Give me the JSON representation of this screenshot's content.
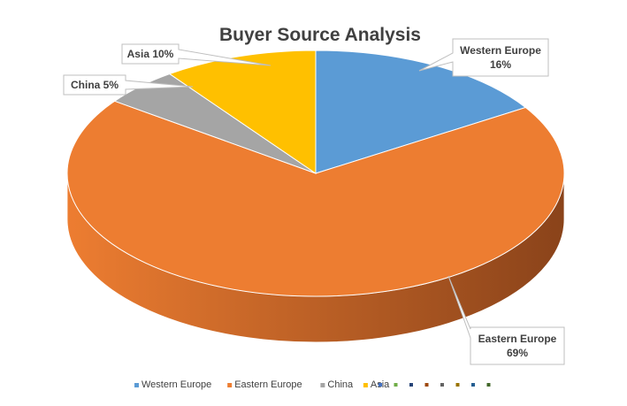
{
  "chart_data": {
    "type": "pie",
    "title": "Buyer Source Analysis",
    "categories": [
      "Western Europe",
      "Eastern Europe",
      "China",
      "Asia"
    ],
    "values": [
      16,
      69,
      5,
      10
    ],
    "unit": "%",
    "colors": [
      "#5b9bd5",
      "#ed7d31",
      "#a5a5a5",
      "#ffc000"
    ],
    "side_colors": [
      "#2e5f8c",
      "#8a431a",
      "#6a6a6a",
      "#a07800"
    ],
    "data_labels": [
      {
        "series": "Western Europe",
        "lines": [
          "Western Europe",
          "16%"
        ]
      },
      {
        "series": "Eastern Europe",
        "lines": [
          "Eastern Europe",
          "69%"
        ]
      },
      {
        "series": "China",
        "lines": [
          "China 5%"
        ]
      },
      {
        "series": "Asia",
        "lines": [
          "Asia 10%"
        ]
      }
    ],
    "legend": {
      "position": "bottom",
      "entries": [
        "Western Europe",
        "Eastern Europe",
        "China",
        "Asia"
      ],
      "extra_marker_colors": [
        "#4472c4",
        "#70ad47",
        "#264478",
        "#9e480e",
        "#636363",
        "#997300",
        "#255e91",
        "#43682b"
      ]
    },
    "style": "3d"
  }
}
